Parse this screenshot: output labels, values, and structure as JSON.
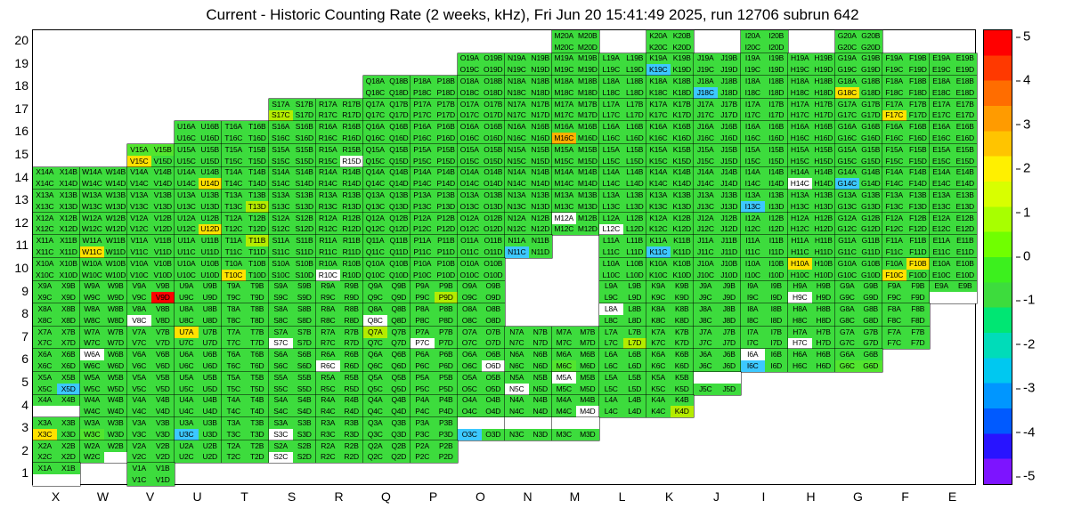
{
  "chart_data": {
    "type": "heatmap",
    "title": "Current - Historic Counting Rate (2 weeks, kHz), Fri Jun 20 15:41:49 2025, run 12706 subrun 642",
    "run": "12706",
    "subrun": "642",
    "timestamp": "Fri Jun 20 15:41:49 2025",
    "units": "kHz",
    "legend_position": "right",
    "columns": [
      "X",
      "W",
      "V",
      "U",
      "T",
      "S",
      "R",
      "Q",
      "P",
      "O",
      "N",
      "M",
      "L",
      "K",
      "J",
      "I",
      "H",
      "G",
      "F",
      "E"
    ],
    "rows": [
      20,
      19,
      18,
      17,
      16,
      15,
      14,
      13,
      12,
      11,
      10,
      9,
      8,
      7,
      6,
      5,
      4,
      3,
      2,
      1
    ],
    "quad_suffixes": [
      "A",
      "B",
      "C",
      "D"
    ],
    "grid": {
      "20": "MKIG",
      "19": "ONMLKJIHGFE",
      "18": "QPONMLKJIHGFE",
      "17": "SRQPONMLKJIHGFE",
      "16": "UTSRQPONMLKJIHGFE",
      "15": "VUTSRQPONMLKJIHGFE",
      "14": "XWVUTSRQPONMLKJIHGFE",
      "13": "XWVUTSRQPONMLKJIHGFE",
      "12": "XWVUTSRQPONMLKJIHGFE",
      "11": "XWVUTSRQPONLKJIHGFE",
      "10": "XWVUTSRQPOLKJIHGFE",
      "9": "XWVUTSRQPOLKJIHGFE",
      "8": "XWVUTSRQPOLKJIHGF",
      "7": "XWVUTSRQPONMLKJIHGF",
      "6": "XWVUTSRQPONMLKJIHG",
      "5": "XWVUTSRQPONMLKJ",
      "4": "XWVUTSRQPONMLK",
      "3": "XWVUTSRQPONM",
      "2": "XWVUTSRQP",
      "1": "XV"
    },
    "partial_cells": {
      "X1": "AB",
      "W2": "ABC",
      "X4": "AB",
      "O3": "CD",
      "N3": "CD",
      "M3": "CD",
      "J5": "CD",
      "E9": "AB"
    },
    "default_value_color": "green",
    "cell_colors": {
      "V9D": "red",
      "M16C": "orange",
      "V15C": "yellow",
      "W11C": "yellow",
      "U14D": "yellow",
      "U12D": "yellow",
      "T10C": "yellow",
      "U7A": "yellow",
      "H10A": "yellow",
      "F10B": "yellow",
      "F10C": "yellow",
      "X3C": "yellow",
      "F17C": "yellow",
      "G18C": "yellow",
      "S17C": "yellowgreen",
      "T13D": "yellowgreen",
      "K4D": "yellowgreen",
      "P9D": "yellowgreen",
      "L7D": "yellowgreen",
      "Q7A": "yellowgreen",
      "T11B": "yellowgreen",
      "J18C": "cyan",
      "K19C": "cyan",
      "G14C": "cyan",
      "I13C": "cyan",
      "N11C": "cyan",
      "K11C": "cyan",
      "I6C": "cyan",
      "X5D": "cyan",
      "U3C": "cyan",
      "O3C": "cyan",
      "R15D": "white",
      "H14C": "white",
      "M12A": "white",
      "L12C": "white",
      "R10C": "white",
      "H9C": "white",
      "Q8C": "white",
      "V8C": "white",
      "L8A": "white",
      "W6A": "white",
      "R6C": "white",
      "O6D": "white",
      "I6A": "white",
      "N5C": "white",
      "M5A": "white",
      "M4D": "white",
      "S3C": "white",
      "S2C": "white",
      "S7C": "white",
      "P7C": "white",
      "H7C": "white",
      "V15A": "green2",
      "V15B": "green2",
      "W3C": "green2",
      "M6C": "green2",
      "G6C": "green2",
      "G6D": "green2"
    },
    "palette": {
      "green": "#3ddc3d",
      "green2": "#52e52e",
      "yellowgreen": "#b4ec00",
      "yellow": "#ffe100",
      "orange": "#ffb000",
      "red": "#ff0000",
      "cyan": "#3cc8ff",
      "white": "#ffffff"
    },
    "value_estimates": {
      "green": 0.3,
      "green2": 0.8,
      "yellowgreen": 1.8,
      "yellow": 2.5,
      "orange": 3.2,
      "red": 5,
      "cyan": -1.5,
      "white": null
    },
    "colorbar": {
      "min": -5,
      "max": 5,
      "ticks": [
        5,
        4,
        3,
        2,
        1,
        0,
        -1,
        -2,
        -3,
        -4,
        -5
      ],
      "colors": [
        "#ff0000",
        "#ff3900",
        "#ff6d00",
        "#ff9b00",
        "#ffc400",
        "#fff000",
        "#d8ff00",
        "#a8ff00",
        "#70ff00",
        "#3cf01e",
        "#3ddc3d",
        "#00e673",
        "#00dcb9",
        "#00c8f0",
        "#0096ff",
        "#005aff",
        "#2814ff",
        "#7d14ff"
      ]
    }
  }
}
